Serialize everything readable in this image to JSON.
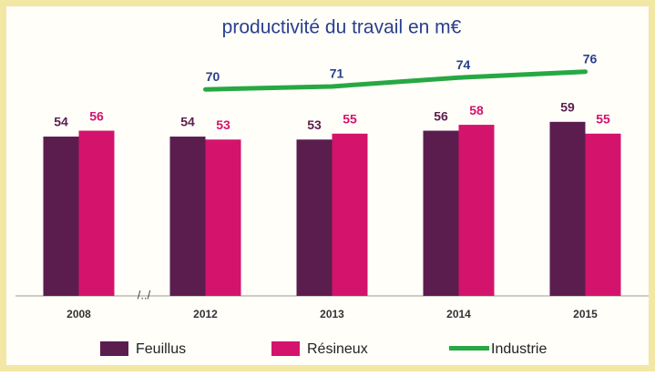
{
  "chart_data": {
    "type": "bar",
    "title": "productivité du travail en m€",
    "annotation": "/../",
    "categories": [
      "2008",
      "2012",
      "2013",
      "2014",
      "2015"
    ],
    "series": [
      {
        "name": "Feuillus",
        "color": "#5b1d4e",
        "values": [
          54,
          54,
          53,
          56,
          59
        ]
      },
      {
        "name": "Résineux",
        "color": "#d4136c",
        "values": [
          56,
          53,
          55,
          58,
          55
        ]
      },
      {
        "name": "Industrie",
        "type": "line",
        "color": "#27a844",
        "label_color": "#2a3f8f",
        "values": [
          null,
          70,
          71,
          74,
          76
        ]
      }
    ],
    "ylim": [
      0,
      100
    ]
  }
}
